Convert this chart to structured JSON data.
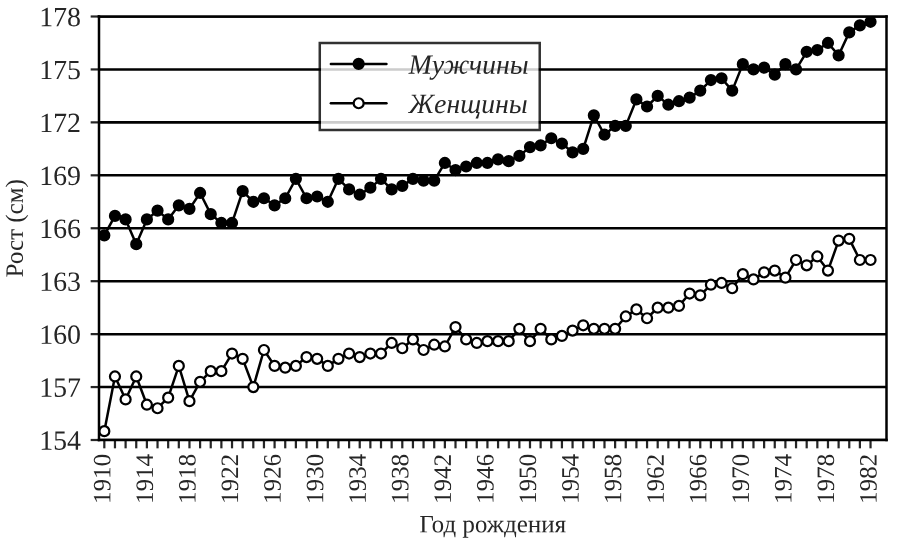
{
  "chart_data": {
    "type": "line",
    "xlabel": "Год рождения",
    "ylabel": "Рост (см)",
    "x": [
      1910,
      1911,
      1912,
      1913,
      1914,
      1915,
      1916,
      1917,
      1918,
      1919,
      1920,
      1921,
      1922,
      1923,
      1924,
      1925,
      1926,
      1927,
      1928,
      1929,
      1930,
      1931,
      1932,
      1933,
      1934,
      1935,
      1936,
      1937,
      1938,
      1939,
      1940,
      1941,
      1942,
      1943,
      1944,
      1945,
      1946,
      1947,
      1948,
      1949,
      1950,
      1951,
      1952,
      1953,
      1954,
      1955,
      1956,
      1957,
      1958,
      1959,
      1960,
      1961,
      1962,
      1963,
      1964,
      1965,
      1966,
      1967,
      1968,
      1969,
      1970,
      1971,
      1972,
      1973,
      1974,
      1975,
      1976,
      1977,
      1978,
      1979,
      1980,
      1981,
      1982
    ],
    "series": [
      {
        "name": "Мужчины",
        "color": "#000000",
        "marker": "circle",
        "values": [
          165.6,
          166.7,
          166.5,
          165.1,
          166.5,
          167.0,
          166.5,
          167.3,
          167.1,
          168.0,
          166.8,
          166.3,
          166.3,
          168.1,
          167.5,
          167.7,
          167.3,
          167.7,
          168.8,
          167.7,
          167.8,
          167.5,
          168.8,
          168.2,
          167.9,
          168.3,
          168.8,
          168.2,
          168.4,
          168.8,
          168.7,
          168.7,
          169.7,
          169.3,
          169.5,
          169.7,
          169.7,
          169.9,
          169.8,
          170.1,
          170.6,
          170.7,
          171.1,
          170.8,
          170.3,
          170.5,
          172.4,
          171.3,
          171.8,
          171.8,
          173.3,
          172.9,
          173.5,
          173.0,
          173.2,
          173.4,
          173.8,
          174.4,
          174.5,
          173.8,
          175.3,
          175.0,
          175.1,
          174.7,
          175.3,
          175.0,
          176.0,
          176.1,
          176.5,
          175.8,
          177.1,
          177.5,
          177.7
        ]
      },
      {
        "name": "Женщины",
        "color": "#000000",
        "marker": "circle",
        "values": [
          154.5,
          157.6,
          156.3,
          157.6,
          156.0,
          155.8,
          156.4,
          158.2,
          156.2,
          157.3,
          157.9,
          157.9,
          158.9,
          158.6,
          157.0,
          159.1,
          158.2,
          158.1,
          158.2,
          158.7,
          158.6,
          158.2,
          158.6,
          158.9,
          158.7,
          158.9,
          158.9,
          159.5,
          159.2,
          159.7,
          159.1,
          159.4,
          159.3,
          160.4,
          159.7,
          159.5,
          159.6,
          159.6,
          159.6,
          160.3,
          159.6,
          160.3,
          159.7,
          159.9,
          160.2,
          160.5,
          160.3,
          160.3,
          160.3,
          161.0,
          161.4,
          160.9,
          161.5,
          161.5,
          161.6,
          162.3,
          162.2,
          162.8,
          162.9,
          162.6,
          163.4,
          163.1,
          163.5,
          163.6,
          163.2,
          164.2,
          163.9,
          164.4,
          163.6,
          165.3,
          165.4,
          164.2,
          164.2
        ]
      }
    ],
    "xlim": [
      1909.5,
      1983.5
    ],
    "xticks": [
      1910,
      {
        "value": 1911,
        "label": null
      },
      {
        "value": 1912,
        "label": null
      },
      {
        "value": 1913,
        "label": null
      },
      1914,
      {
        "value": 1915,
        "label": null
      },
      {
        "value": 1916,
        "label": null
      },
      {
        "value": 1917,
        "label": null
      },
      1918,
      {
        "value": 1919,
        "label": null
      },
      {
        "value": 1920,
        "label": null
      },
      {
        "value": 1921,
        "label": null
      },
      1922,
      {
        "value": 1923,
        "label": null
      },
      {
        "value": 1924,
        "label": null
      },
      {
        "value": 1925,
        "label": null
      },
      1926,
      {
        "value": 1927,
        "label": null
      },
      {
        "value": 1928,
        "label": null
      },
      {
        "value": 1929,
        "label": null
      },
      1930,
      {
        "value": 1931,
        "label": null
      },
      {
        "value": 1932,
        "label": null
      },
      {
        "value": 1933,
        "label": null
      },
      1934,
      {
        "value": 1935,
        "label": null
      },
      {
        "value": 1936,
        "label": null
      },
      {
        "value": 1937,
        "label": null
      },
      1938,
      {
        "value": 1939,
        "label": null
      },
      {
        "value": 1940,
        "label": null
      },
      {
        "value": 1941,
        "label": null
      },
      1942,
      {
        "value": 1943,
        "label": null
      },
      {
        "value": 1944,
        "label": null
      },
      {
        "value": 1945,
        "label": null
      },
      1946,
      {
        "value": 1947,
        "label": null
      },
      {
        "value": 1948,
        "label": null
      },
      {
        "value": 1949,
        "label": null
      },
      1950,
      {
        "value": 1951,
        "label": null
      },
      {
        "value": 1952,
        "label": null
      },
      {
        "value": 1953,
        "label": null
      },
      1954,
      {
        "value": 1955,
        "label": null
      },
      {
        "value": 1956,
        "label": null
      },
      {
        "value": 1957,
        "label": null
      },
      1958,
      {
        "value": 1959,
        "label": null
      },
      {
        "value": 1960,
        "label": null
      },
      {
        "value": 1961,
        "label": null
      },
      1962,
      {
        "value": 1963,
        "label": null
      },
      {
        "value": 1964,
        "label": null
      },
      {
        "value": 1965,
        "label": null
      },
      1966,
      {
        "value": 1967,
        "label": null
      },
      {
        "value": 1968,
        "label": null
      },
      {
        "value": 1969,
        "label": null
      },
      1970,
      {
        "value": 1971,
        "label": null
      },
      {
        "value": 1972,
        "label": null
      },
      {
        "value": 1973,
        "label": null
      },
      1974,
      {
        "value": 1975,
        "label": null
      },
      {
        "value": 1976,
        "label": null
      },
      {
        "value": 1977,
        "label": null
      },
      1978,
      {
        "value": 1979,
        "label": null
      },
      {
        "value": 1980,
        "label": null
      },
      {
        "value": 1981,
        "label": null
      },
      1982
    ],
    "ylim": [
      154,
      178
    ],
    "yticks": [
      154,
      157,
      160,
      163,
      166,
      169,
      172,
      175,
      178
    ],
    "grid": "y",
    "legend": "top",
    "line_style": "solid"
  }
}
